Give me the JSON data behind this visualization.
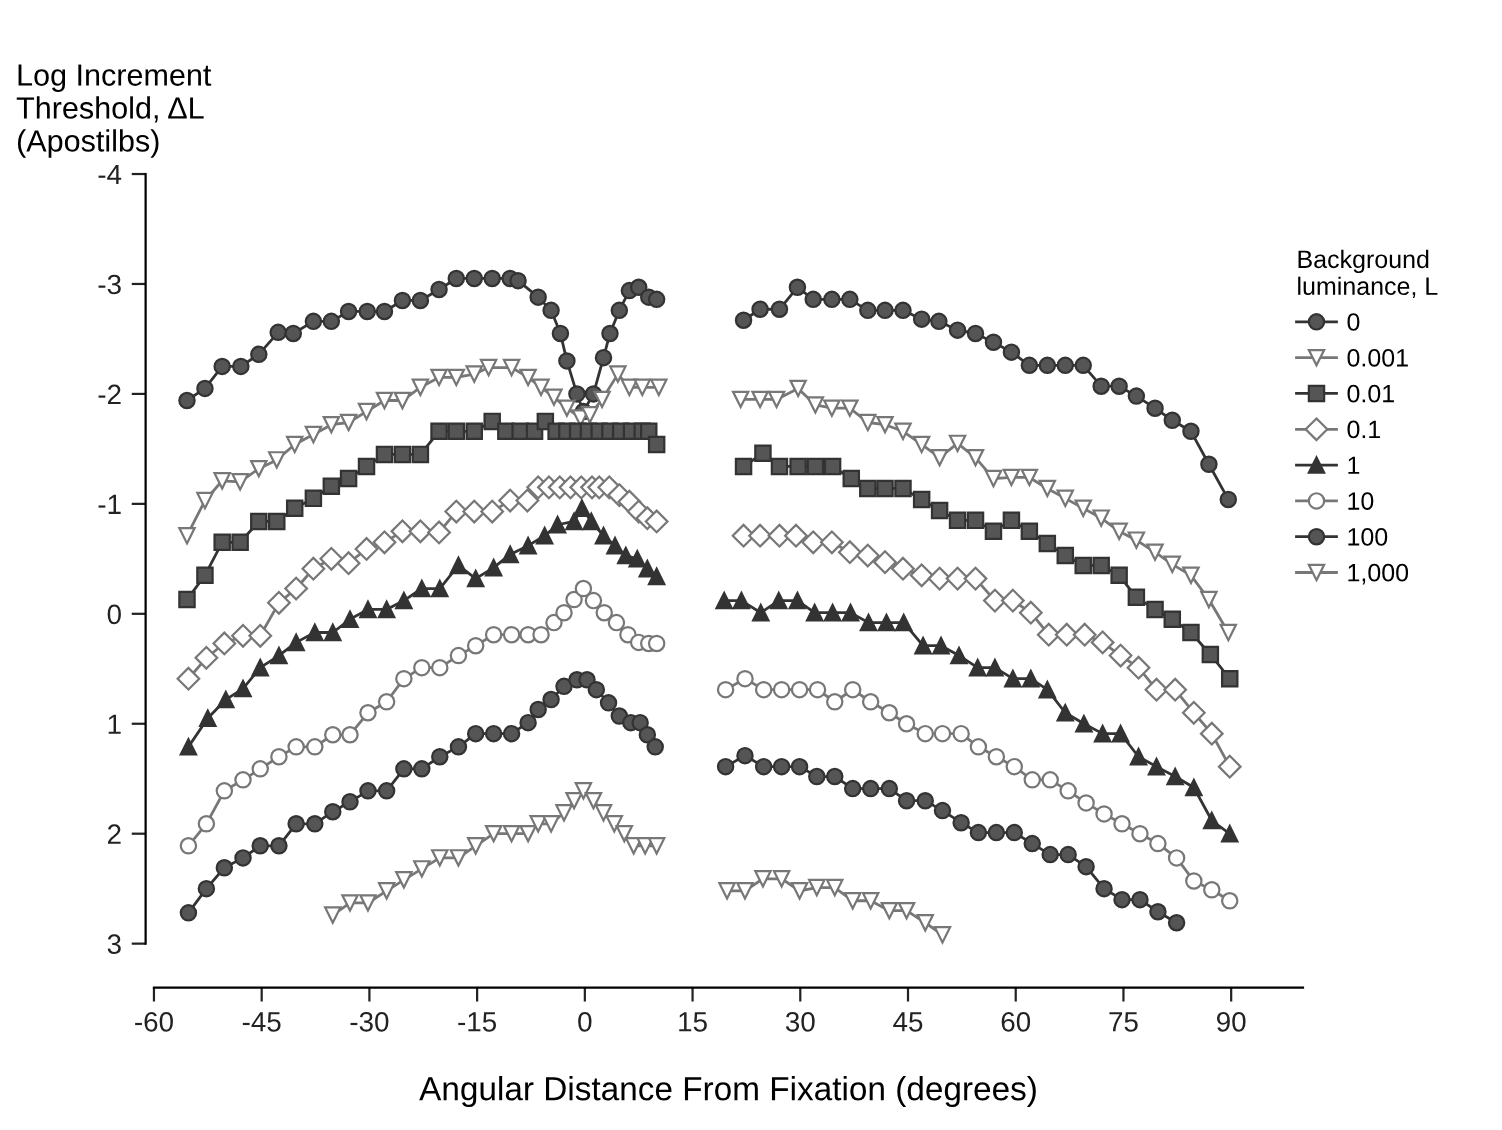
{
  "chart_data": {
    "type": "line",
    "xlabel": "Angular Distance From Fixation (degrees)",
    "ylabel": "Log Increment\nThreshold, ΔL\n(Apostilbs)",
    "legend_title": "Background\nluminance, L",
    "legend": "right",
    "grid": false,
    "xlim": [
      -60,
      100
    ],
    "xticks": [
      -60,
      -45,
      -30,
      -15,
      0,
      15,
      30,
      45,
      60,
      75,
      90
    ],
    "ylim": [
      3.4,
      -4
    ],
    "yticks": [
      -4,
      -3,
      -2,
      -1,
      0,
      1,
      2,
      3
    ],
    "series": [
      {
        "name": "0",
        "color": "#555555",
        "marker": "circle",
        "x": [
          -55.4,
          -52.9,
          -50.5,
          -47.9,
          -45.4,
          -42.7,
          -40.6,
          -37.8,
          -35.3,
          -32.9,
          -30.3,
          -27.9,
          -25.4,
          -22.9,
          -20.3,
          -17.9,
          -15.4,
          -12.9,
          -10.4,
          -9.3,
          -6.5,
          -4.7,
          -3.4,
          -2.5,
          -1.1,
          -0.2,
          1.2,
          2.6,
          3.5,
          4.8,
          6.2,
          7.5,
          8.9,
          10.0,
          15,
          22.1,
          24.4,
          27.1,
          29.6,
          31.8,
          34.4,
          36.9,
          39.4,
          41.8,
          44.3,
          46.9,
          49.3,
          51.9,
          54.4,
          56.9,
          59.4,
          61.9,
          64.4,
          66.9,
          69.4,
          71.9,
          74.4,
          76.8,
          79.4,
          81.8,
          84.4,
          86.9,
          89.6
        ],
        "values": [
          -1.94,
          -2.05,
          -2.25,
          -2.25,
          -2.36,
          -2.56,
          -2.55,
          -2.66,
          -2.66,
          -2.75,
          -2.75,
          -2.75,
          -2.85,
          -2.85,
          -2.95,
          -3.05,
          -3.05,
          -3.05,
          -3.05,
          -3.03,
          -2.88,
          -2.76,
          -2.55,
          -2.3,
          -2.0,
          -1.84,
          -2.0,
          -2.33,
          -2.55,
          -2.76,
          -2.94,
          -2.97,
          -2.88,
          -2.86,
          null,
          -2.67,
          -2.77,
          -2.77,
          -2.97,
          -2.86,
          -2.86,
          -2.86,
          -2.76,
          -2.76,
          -2.76,
          -2.68,
          -2.66,
          -2.58,
          -2.55,
          -2.47,
          -2.38,
          -2.26,
          -2.26,
          -2.26,
          -2.26,
          -2.07,
          -2.07,
          -1.98,
          -1.87,
          -1.76,
          -1.66,
          -1.36,
          -1.04
        ]
      },
      {
        "name": "0.001",
        "color": "#ffffff",
        "marker": "triangle_down",
        "x": [
          -55.4,
          -52.9,
          -50.5,
          -48.0,
          -45.4,
          -42.9,
          -40.4,
          -37.8,
          -35.3,
          -32.9,
          -30.4,
          -27.9,
          -25.4,
          -22.9,
          -20.3,
          -17.9,
          -15.4,
          -13.4,
          -10.2,
          -7.9,
          -6.1,
          -4.3,
          -2.5,
          -0.6,
          0.7,
          2.4,
          4.6,
          6.2,
          8.0,
          10.3,
          15,
          21.7,
          24.4,
          26.7,
          29.7,
          32.1,
          34.4,
          36.9,
          39.4,
          41.8,
          44.3,
          46.9,
          49.4,
          51.9,
          54.4,
          56.9,
          59.4,
          61.9,
          64.4,
          66.9,
          69.4,
          71.9,
          74.4,
          76.8,
          79.4,
          81.8,
          84.4,
          86.9,
          89.6
        ],
        "values": [
          -0.71,
          -1.03,
          -1.21,
          -1.2,
          -1.32,
          -1.4,
          -1.54,
          -1.63,
          -1.72,
          -1.74,
          -1.84,
          -1.94,
          -1.94,
          -2.06,
          -2.15,
          -2.15,
          -2.18,
          -2.24,
          -2.24,
          -2.15,
          -2.06,
          -1.97,
          -1.87,
          -1.78,
          -1.81,
          -1.95,
          -2.18,
          -2.06,
          -2.06,
          -2.06,
          null,
          -1.95,
          -1.95,
          -1.95,
          -2.05,
          -1.9,
          -1.87,
          -1.87,
          -1.74,
          -1.72,
          -1.66,
          -1.54,
          -1.42,
          -1.55,
          -1.42,
          -1.23,
          -1.24,
          -1.24,
          -1.14,
          -1.05,
          -0.96,
          -0.87,
          -0.75,
          -0.67,
          -0.56,
          -0.45,
          -0.35,
          -0.13,
          0.17
        ]
      },
      {
        "name": "0.01",
        "color": "#555555",
        "marker": "square",
        "x": [
          -55.4,
          -52.9,
          -50.5,
          -48.0,
          -45.4,
          -42.9,
          -40.4,
          -37.8,
          -35.3,
          -32.9,
          -30.4,
          -27.9,
          -25.4,
          -22.9,
          -20.3,
          -17.9,
          -15.4,
          -12.9,
          -11,
          -9,
          -7,
          -5.5,
          -4,
          -2.5,
          -1,
          0.5,
          2,
          3.5,
          5,
          6.5,
          8,
          8.9,
          10,
          15,
          22.1,
          24.8,
          27.1,
          29.7,
          32.1,
          34.5,
          37.1,
          39.4,
          41.8,
          44.3,
          46.9,
          49.4,
          51.9,
          54.4,
          56.9,
          59.4,
          61.9,
          64.4,
          66.9,
          69.4,
          71.9,
          74.4,
          76.8,
          79.4,
          81.8,
          84.4,
          87.1,
          89.8
        ],
        "values": [
          -0.13,
          -0.35,
          -0.65,
          -0.65,
          -0.84,
          -0.84,
          -0.96,
          -1.05,
          -1.16,
          -1.23,
          -1.34,
          -1.45,
          -1.45,
          -1.45,
          -1.66,
          -1.66,
          -1.66,
          -1.75,
          -1.66,
          -1.66,
          -1.66,
          -1.75,
          -1.66,
          -1.66,
          -1.66,
          -1.66,
          -1.66,
          -1.66,
          -1.66,
          -1.66,
          -1.66,
          -1.66,
          -1.54,
          null,
          -1.34,
          -1.46,
          -1.34,
          -1.34,
          -1.34,
          -1.34,
          -1.23,
          -1.14,
          -1.14,
          -1.14,
          -1.04,
          -0.94,
          -0.85,
          -0.85,
          -0.75,
          -0.85,
          -0.75,
          -0.64,
          -0.53,
          -0.44,
          -0.44,
          -0.35,
          -0.15,
          -0.04,
          0.05,
          0.17,
          0.37,
          0.59
        ]
      },
      {
        "name": "0.1",
        "color": "#ffffff",
        "marker": "diamond",
        "x": [
          -55.2,
          -52.7,
          -50.2,
          -47.6,
          -45.2,
          -42.6,
          -40.2,
          -37.8,
          -35.3,
          -32.9,
          -30.4,
          -27.9,
          -25.4,
          -22.9,
          -20.3,
          -17.9,
          -15.4,
          -12.9,
          -10.4,
          -8.0,
          -6.5,
          -5,
          -3.5,
          -2,
          -0.5,
          1,
          2,
          3.4,
          4.8,
          6.2,
          7.5,
          8.7,
          10.0,
          15,
          22.1,
          24.4,
          27.1,
          29.4,
          31.8,
          34.4,
          36.9,
          39.4,
          41.8,
          44.3,
          46.9,
          49.4,
          51.9,
          54.4,
          57.1,
          59.6,
          62.1,
          64.6,
          67.1,
          69.6,
          72.1,
          74.6,
          77.1,
          79.6,
          82.2,
          84.8,
          87.3,
          89.8
        ],
        "values": [
          0.59,
          0.4,
          0.27,
          0.2,
          0.2,
          -0.1,
          -0.23,
          -0.41,
          -0.5,
          -0.46,
          -0.59,
          -0.65,
          -0.75,
          -0.75,
          -0.74,
          -0.93,
          -0.93,
          -0.93,
          -1.03,
          -1.03,
          -1.15,
          -1.15,
          -1.15,
          -1.15,
          -1.15,
          -1.15,
          -1.15,
          -1.15,
          -1.08,
          -1.02,
          -0.93,
          -0.87,
          -0.84,
          null,
          -0.71,
          -0.71,
          -0.71,
          -0.71,
          -0.65,
          -0.65,
          -0.56,
          -0.53,
          -0.47,
          -0.41,
          -0.35,
          -0.32,
          -0.32,
          -0.32,
          -0.12,
          -0.12,
          -0.01,
          0.19,
          0.19,
          0.19,
          0.26,
          0.38,
          0.49,
          0.69,
          0.69,
          0.9,
          1.09,
          1.39
        ]
      },
      {
        "name": "1",
        "color": "#333333",
        "marker": "triangle",
        "x": [
          -55.2,
          -52.5,
          -50.0,
          -47.6,
          -45.2,
          -42.6,
          -40.2,
          -37.6,
          -35.1,
          -32.7,
          -30.2,
          -27.6,
          -25.2,
          -22.7,
          -20.2,
          -17.6,
          -15.2,
          -12.7,
          -10.4,
          -7.9,
          -5.6,
          -3.8,
          -1.5,
          -0.4,
          0.9,
          2.6,
          4.2,
          5.7,
          7.3,
          8.7,
          10.0,
          15,
          19.4,
          21.8,
          24.5,
          27.0,
          29.6,
          32.0,
          34.5,
          37.0,
          39.5,
          42.0,
          44.4,
          47.1,
          49.6,
          52.1,
          54.7,
          57.1,
          59.6,
          62.1,
          64.4,
          66.9,
          69.5,
          72.1,
          74.6,
          77.1,
          79.6,
          82.2,
          84.8,
          87.3,
          89.8
        ],
        "values": [
          1.21,
          0.95,
          0.78,
          0.68,
          0.49,
          0.38,
          0.26,
          0.17,
          0.17,
          0.05,
          -0.04,
          -0.04,
          -0.12,
          -0.23,
          -0.23,
          -0.44,
          -0.32,
          -0.42,
          -0.54,
          -0.62,
          -0.71,
          -0.81,
          -0.84,
          -0.96,
          -0.84,
          -0.71,
          -0.62,
          -0.53,
          -0.5,
          -0.41,
          -0.34,
          null,
          -0.12,
          -0.12,
          -0.01,
          -0.12,
          -0.12,
          -0.01,
          -0.01,
          -0.01,
          0.08,
          0.08,
          0.08,
          0.29,
          0.29,
          0.38,
          0.49,
          0.49,
          0.59,
          0.59,
          0.69,
          0.9,
          1.0,
          1.09,
          1.09,
          1.3,
          1.39,
          1.48,
          1.58,
          1.88,
          2.0
        ]
      },
      {
        "name": "10",
        "color": "#ffffff",
        "marker": "circle",
        "x": [
          -55.2,
          -52.7,
          -50.2,
          -47.6,
          -45.2,
          -42.6,
          -40.2,
          -37.6,
          -35.1,
          -32.7,
          -30.2,
          -27.6,
          -25.2,
          -22.7,
          -20.2,
          -17.6,
          -15.2,
          -12.7,
          -10.2,
          -7.9,
          -6.1,
          -4.3,
          -2.9,
          -1.5,
          -0.2,
          1.2,
          2.7,
          4.4,
          6.0,
          7.5,
          8.9,
          10.0,
          15,
          19.6,
          22.3,
          24.9,
          27.4,
          29.9,
          32.4,
          34.8,
          37.3,
          39.8,
          42.4,
          44.8,
          47.4,
          49.8,
          52.4,
          54.8,
          57.3,
          59.8,
          62.3,
          64.8,
          67.3,
          69.8,
          72.3,
          74.8,
          77.3,
          79.8,
          82.4,
          84.8,
          87.3,
          89.8
        ],
        "values": [
          2.11,
          1.91,
          1.61,
          1.51,
          1.41,
          1.3,
          1.21,
          1.21,
          1.1,
          1.1,
          0.9,
          0.8,
          0.59,
          0.49,
          0.49,
          0.38,
          0.29,
          0.19,
          0.19,
          0.19,
          0.19,
          0.08,
          -0.01,
          -0.13,
          -0.23,
          -0.12,
          -0.01,
          0.08,
          0.19,
          0.26,
          0.27,
          0.27,
          null,
          0.69,
          0.59,
          0.69,
          0.69,
          0.69,
          0.69,
          0.8,
          0.69,
          0.8,
          0.9,
          1.0,
          1.09,
          1.09,
          1.09,
          1.21,
          1.3,
          1.39,
          1.51,
          1.51,
          1.61,
          1.72,
          1.82,
          1.91,
          2.0,
          2.09,
          2.22,
          2.43,
          2.51,
          2.61
        ]
      },
      {
        "name": "100",
        "color": "#555555",
        "marker": "circle",
        "x": [
          -55.2,
          -52.7,
          -50.2,
          -47.6,
          -45.2,
          -42.6,
          -40.2,
          -37.6,
          -35.1,
          -32.7,
          -30.2,
          -27.6,
          -25.2,
          -22.7,
          -20.2,
          -17.6,
          -15.2,
          -12.7,
          -10.2,
          -7.9,
          -6.5,
          -4.7,
          -2.9,
          -1.1,
          0.3,
          1.6,
          3.3,
          4.8,
          6.4,
          7.7,
          8.7,
          9.8,
          15,
          19.6,
          22.3,
          24.9,
          27.4,
          29.9,
          32.3,
          34.8,
          37.3,
          39.8,
          42.4,
          44.8,
          47.4,
          49.8,
          52.4,
          54.8,
          57.3,
          59.8,
          62.3,
          64.8,
          67.3,
          69.8,
          72.3,
          74.8,
          77.3,
          79.8,
          82.4
        ],
        "values": [
          2.72,
          2.5,
          2.31,
          2.22,
          2.11,
          2.11,
          1.91,
          1.91,
          1.8,
          1.71,
          1.61,
          1.61,
          1.41,
          1.41,
          1.3,
          1.21,
          1.09,
          1.09,
          1.09,
          0.99,
          0.87,
          0.78,
          0.66,
          0.6,
          0.6,
          0.69,
          0.81,
          0.93,
          0.99,
          0.99,
          1.1,
          1.21,
          null,
          1.39,
          1.29,
          1.39,
          1.39,
          1.39,
          1.48,
          1.48,
          1.59,
          1.59,
          1.59,
          1.7,
          1.7,
          1.79,
          1.9,
          1.99,
          1.99,
          1.99,
          2.09,
          2.19,
          2.19,
          2.3,
          2.5,
          2.6,
          2.6,
          2.71,
          2.81
        ]
      },
      {
        "name": "1,000",
        "color": "#ffffff",
        "marker": "triangle_down",
        "x": [
          -35.1,
          -32.7,
          -30.2,
          -27.6,
          -25.2,
          -22.7,
          -20.2,
          -17.6,
          -15.2,
          -12.7,
          -10.2,
          -7.9,
          -6.5,
          -4.7,
          -2.9,
          -1.5,
          -0.2,
          1.2,
          2.6,
          4.1,
          5.5,
          6.8,
          8.4,
          10.0,
          15,
          19.8,
          22.3,
          24.8,
          27.4,
          29.9,
          32.3,
          34.8,
          37.3,
          39.8,
          42.4,
          44.8,
          47.4,
          49.8
        ],
        "values": [
          2.74,
          2.63,
          2.63,
          2.52,
          2.42,
          2.32,
          2.22,
          2.22,
          2.11,
          2.0,
          2.0,
          2.0,
          1.91,
          1.91,
          1.81,
          1.7,
          1.61,
          1.7,
          1.81,
          1.91,
          2.0,
          2.11,
          2.11,
          2.11,
          null,
          2.52,
          2.52,
          2.41,
          2.41,
          2.52,
          2.49,
          2.49,
          2.61,
          2.61,
          2.7,
          2.7,
          2.81,
          2.92
        ]
      }
    ]
  }
}
